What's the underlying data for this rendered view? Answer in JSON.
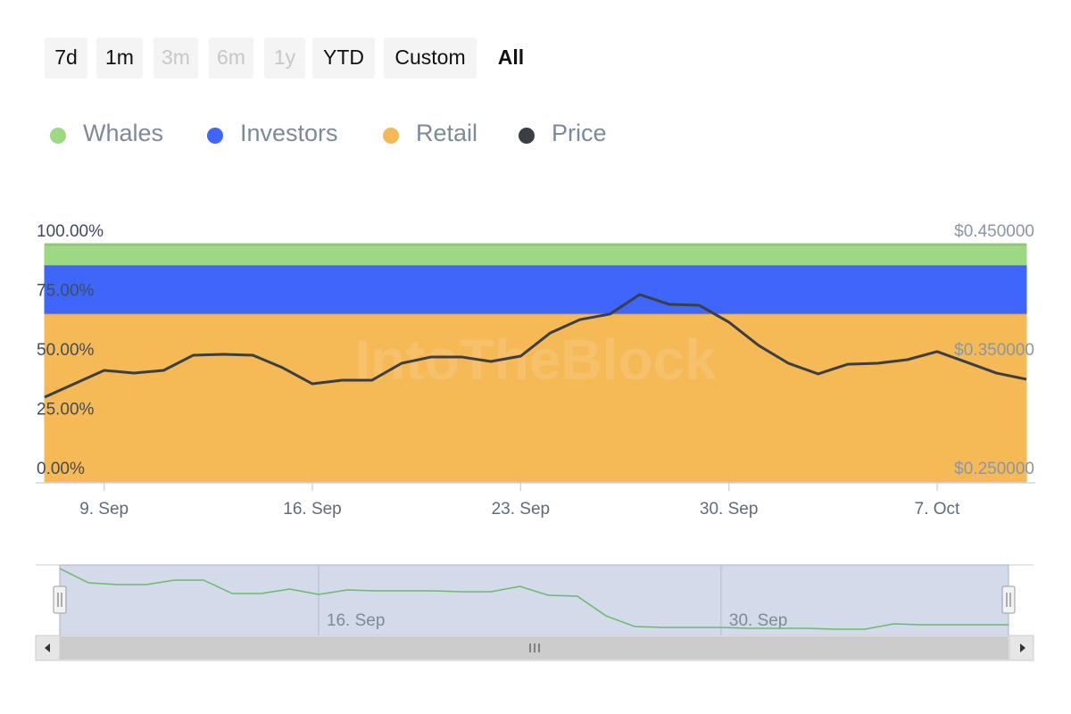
{
  "range_selector": {
    "buttons": [
      {
        "label": "7d",
        "disabled": false,
        "selected": false
      },
      {
        "label": "1m",
        "disabled": false,
        "selected": false
      },
      {
        "label": "3m",
        "disabled": true,
        "selected": false
      },
      {
        "label": "6m",
        "disabled": true,
        "selected": false
      },
      {
        "label": "1y",
        "disabled": true,
        "selected": false
      },
      {
        "label": "YTD",
        "disabled": false,
        "selected": false
      },
      {
        "label": "Custom",
        "disabled": false,
        "selected": false
      },
      {
        "label": "All",
        "disabled": false,
        "selected": true
      }
    ]
  },
  "chart_data": [
    {
      "type": "area",
      "watermark": "IntoTheBlock",
      "categories": [
        null,
        null,
        "9. Sep",
        null,
        null,
        null,
        null,
        null,
        null,
        "16. Sep",
        null,
        null,
        null,
        null,
        null,
        null,
        "23. Sep",
        null,
        null,
        null,
        null,
        null,
        null,
        "30. Sep",
        null,
        null,
        null,
        null,
        null,
        null,
        "7. Oct",
        null,
        null,
        null
      ],
      "series": [
        {
          "name": "Whales",
          "color": "#9dd882",
          "values": [
            8.6,
            8.6,
            8.6,
            8.6,
            8.6,
            8.6,
            8.6,
            8.6,
            8.6,
            8.6,
            8.6,
            8.6,
            8.6,
            8.6,
            8.6,
            8.6,
            8.6,
            8.6,
            8.6,
            8.6,
            8.6,
            8.6,
            8.6,
            8.6,
            8.6,
            8.6,
            8.6,
            8.6,
            8.6,
            8.6,
            8.6,
            8.6,
            8.6,
            8.6
          ]
        },
        {
          "name": "Investors",
          "color": "#3f66fb",
          "values": [
            20.4,
            20.4,
            20.4,
            20.4,
            20.4,
            20.4,
            20.4,
            20.4,
            20.4,
            20.4,
            20.4,
            20.4,
            20.4,
            20.4,
            20.4,
            20.4,
            20.4,
            20.4,
            20.4,
            20.4,
            20.4,
            20.4,
            20.4,
            20.4,
            20.4,
            20.4,
            20.4,
            20.4,
            20.4,
            20.4,
            20.4,
            20.4,
            20.4,
            20.4
          ]
        },
        {
          "name": "Retail",
          "color": "#f5b956",
          "values": [
            71,
            71,
            71,
            71,
            71,
            71,
            71,
            71,
            71,
            71,
            71,
            71,
            71,
            71,
            71,
            71,
            71,
            71,
            71,
            71,
            71,
            71,
            71,
            71,
            71,
            71,
            71,
            71,
            71,
            71,
            71,
            71,
            71,
            71
          ]
        },
        {
          "name": "Price",
          "color": "#3a3f45",
          "axis": "y2",
          "values": [
            0.3214,
            0.3327,
            0.344,
            0.3417,
            0.344,
            0.3568,
            0.3575,
            0.3568,
            0.3462,
            0.3327,
            0.3357,
            0.3357,
            0.35,
            0.3553,
            0.3553,
            0.3515,
            0.356,
            0.3756,
            0.3868,
            0.3914,
            0.4079,
            0.3996,
            0.3989,
            0.3846,
            0.365,
            0.35,
            0.341,
            0.3492,
            0.35,
            0.353,
            0.3598,
            0.3508,
            0.3417,
            0.3365
          ]
        }
      ],
      "ylim": [
        0,
        100
      ],
      "yticks": [
        {
          "value": 0,
          "label": "0.00%"
        },
        {
          "value": 25,
          "label": "25.00%"
        },
        {
          "value": 50,
          "label": "50.00%"
        },
        {
          "value": 75,
          "label": "75.00%"
        },
        {
          "value": 100,
          "label": "100.00%"
        }
      ],
      "y2lim": [
        0.25,
        0.45
      ],
      "y2ticks": [
        {
          "value": 0.25,
          "label": "$0.250000"
        },
        {
          "value": 0.35,
          "label": "$0.350000"
        },
        {
          "value": 0.45,
          "label": "$0.450000"
        }
      ],
      "legend": "top-left"
    },
    {
      "type": "line",
      "color": "#6db96a",
      "categories": [
        null,
        null,
        null,
        null,
        null,
        null,
        null,
        null,
        null,
        "16. Sep",
        null,
        null,
        null,
        null,
        null,
        null,
        null,
        null,
        null,
        null,
        null,
        null,
        null,
        "30. Sep",
        null,
        null,
        null,
        null,
        null,
        null,
        null,
        null,
        null,
        null
      ],
      "values": [
        94.9,
        74.7,
        72.2,
        72.2,
        78.5,
        78.5,
        59.5,
        59.5,
        65.8,
        58.2,
        64.6,
        63.3,
        63.3,
        63.3,
        62,
        62,
        69.6,
        57,
        55.7,
        27.8,
        12.7,
        11.4,
        11.4,
        11.4,
        10.1,
        10.1,
        10.1,
        8.9,
        8.9,
        16.5,
        15.2,
        15.2,
        15.2,
        15.2
      ],
      "ylim": [
        0,
        100
      ]
    }
  ]
}
